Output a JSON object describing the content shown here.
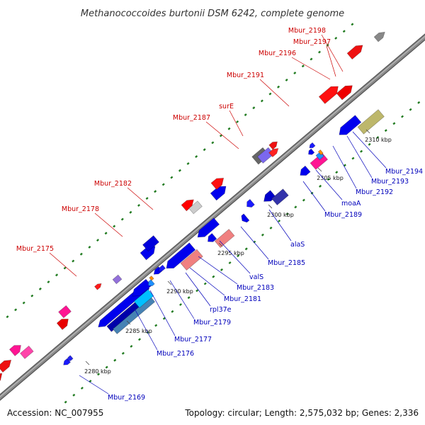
{
  "title": "Methanococcoides burtonii DSM 6242, complete genome",
  "footer": {
    "accession": "Accession: NC_007955",
    "summary": "Topology: circular; Length: 2,575,032 bp; Genes: 2,336"
  },
  "colors": {
    "backbone": "#8a8a8a",
    "backbone_edge": "#555555",
    "track_dot": "#1f7a1f",
    "forward_label": "#cc0000",
    "reverse_label": "#0000bb",
    "leader_forward": "#cc0000",
    "leader_reverse": "#0000bb"
  },
  "ticks": [
    {
      "label": "2280 kbp"
    },
    {
      "label": "2285 kbp"
    },
    {
      "label": "2290 kbp"
    },
    {
      "label": "2295 kbp"
    },
    {
      "label": "2300 kbp"
    },
    {
      "label": "2305 kbp"
    },
    {
      "label": "2310 kbp"
    }
  ],
  "labels_forward": [
    {
      "text": "Mbur_2198"
    },
    {
      "text": "Mbur_2197"
    },
    {
      "text": "Mbur_2196"
    },
    {
      "text": "Mbur_2191"
    },
    {
      "text": "surE"
    },
    {
      "text": "Mbur_2187"
    },
    {
      "text": "Mbur_2182"
    },
    {
      "text": "Mbur_2178"
    },
    {
      "text": "Mbur_2175"
    }
  ],
  "labels_reverse": [
    {
      "text": "Mbur_2194"
    },
    {
      "text": "Mbur_2193"
    },
    {
      "text": "Mbur_2192"
    },
    {
      "text": "moaA"
    },
    {
      "text": "Mbur_2189"
    },
    {
      "text": "alaS"
    },
    {
      "text": "Mbur_2185"
    },
    {
      "text": "valS"
    },
    {
      "text": "Mbur_2183"
    },
    {
      "text": "Mbur_2181"
    },
    {
      "text": "rpl37e"
    },
    {
      "text": "Mbur_2179"
    },
    {
      "text": "Mbur_2177"
    },
    {
      "text": "Mbur_2176"
    },
    {
      "text": "Mbur_2169"
    }
  ]
}
